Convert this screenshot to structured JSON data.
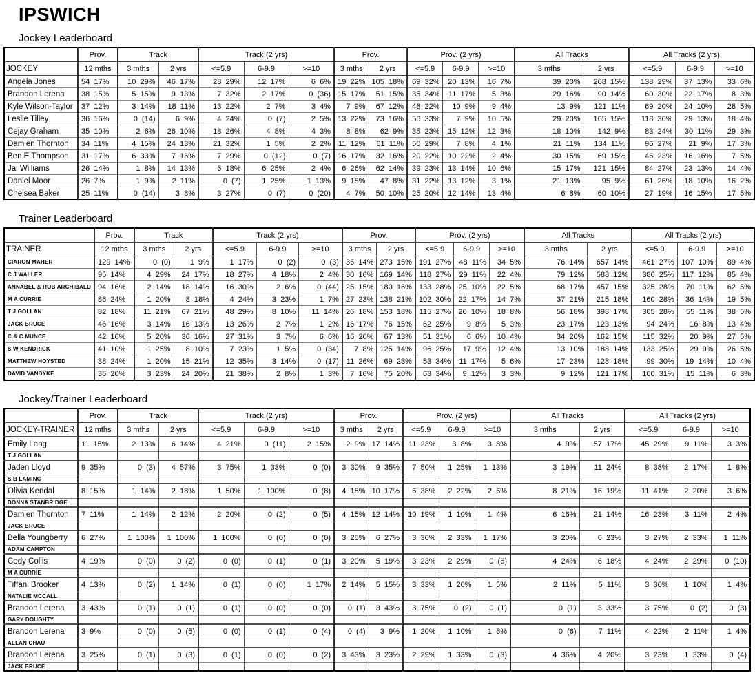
{
  "page_title": "IPSWICH",
  "columns": {
    "header_groups": [
      {
        "label": "Prov.",
        "span": 1
      },
      {
        "label": "Track",
        "span": 2
      },
      {
        "label": "Track (2 yrs)",
        "span": 3
      },
      {
        "label": "Prov.",
        "span": 2
      },
      {
        "label": "Prov. (2 yrs)",
        "span": 3
      },
      {
        "label": "All Tracks",
        "span": 2
      },
      {
        "label": "All Tracks (2 yrs)",
        "span": 3
      }
    ],
    "sub_headers": [
      "12 mths",
      "3 mths",
      "2 yrs",
      "<=5.9",
      "6-9.9",
      ">=10",
      "3 mths",
      "2 yrs",
      "<=5.9",
      "6-9.9",
      ">=10",
      "3 mths",
      "2 yrs",
      "<=5.9",
      "6-9.9",
      ">=10"
    ]
  },
  "sections": [
    {
      "heading": "Jockey Leaderboard",
      "name_header": "JOCKEY",
      "rows": [
        {
          "name": "Angela Jones",
          "values": [
            "54  17%",
            "10  29%",
            "46  17%",
            "28  29%",
            "12  17%",
            "6  6%",
            "19  22%",
            "105  18%",
            "69  32%",
            "20  13%",
            "16  7%",
            "39  20%",
            "208  15%",
            "138  29%",
            "37  13%",
            "33  6%"
          ]
        },
        {
          "name": "Brandon Lerena",
          "values": [
            "38  15%",
            "5  15%",
            "9  13%",
            "7  32%",
            "2  17%",
            "0  (36)",
            "15  17%",
            "51  15%",
            "35  34%",
            "11  17%",
            "5  3%",
            "29  16%",
            "90  14%",
            "60  30%",
            "22  17%",
            "8  3%"
          ]
        },
        {
          "name": "Kyle Wilson-Taylor",
          "values": [
            "37  12%",
            "3  14%",
            "18  11%",
            "13  22%",
            "2  7%",
            "3  4%",
            "7  9%",
            "67  12%",
            "48  22%",
            "10  9%",
            "9  4%",
            "13  9%",
            "121  11%",
            "69  20%",
            "24  10%",
            "28  5%"
          ]
        },
        {
          "name": "Leslie Tilley",
          "values": [
            "36  16%",
            "0  (14)",
            "6  9%",
            "4  24%",
            "0  (7)",
            "2  5%",
            "13  22%",
            "73  16%",
            "56  33%",
            "7  9%",
            "10  5%",
            "29  20%",
            "165  15%",
            "118  30%",
            "29  13%",
            "18  4%"
          ]
        },
        {
          "name": "Cejay Graham",
          "values": [
            "35  10%",
            "2  6%",
            "26  10%",
            "18  26%",
            "4  8%",
            "4  3%",
            "8  8%",
            "62  9%",
            "35  23%",
            "15  12%",
            "12  3%",
            "18  10%",
            "142  9%",
            "83  24%",
            "30  11%",
            "29  3%"
          ]
        },
        {
          "name": "Damien Thornton",
          "values": [
            "34  11%",
            "4  15%",
            "24  13%",
            "21  32%",
            "1  5%",
            "2  2%",
            "11  12%",
            "61  11%",
            "50  29%",
            "7  8%",
            "4  1%",
            "21  11%",
            "134  11%",
            "96  27%",
            "21  9%",
            "17  3%"
          ]
        },
        {
          "name": "Ben E Thompson",
          "values": [
            "31  17%",
            "6  33%",
            "7  16%",
            "7  29%",
            "0  (12)",
            "0  (7)",
            "16  17%",
            "32  16%",
            "20  22%",
            "10  22%",
            "2  4%",
            "30  15%",
            "69  15%",
            "46  23%",
            "16  16%",
            "7  5%"
          ]
        },
        {
          "name": "Jai Williams",
          "values": [
            "26  14%",
            "1  8%",
            "14  13%",
            "6  18%",
            "6  25%",
            "2  4%",
            "6  26%",
            "62  14%",
            "39  23%",
            "13  14%",
            "10  6%",
            "15  17%",
            "121  15%",
            "84  27%",
            "23  13%",
            "14  4%"
          ]
        },
        {
          "name": "Daniel Moor",
          "values": [
            "26  7%",
            "1  9%",
            "2  11%",
            "0  (7)",
            "1  25%",
            "1  13%",
            "9  15%",
            "47  8%",
            "31  22%",
            "13  12%",
            "3  1%",
            "21  13%",
            "95  9%",
            "61  26%",
            "18  10%",
            "16  2%"
          ]
        },
        {
          "name": "Chelsea Baker",
          "values": [
            "25  11%",
            "0  (14)",
            "3  8%",
            "3  27%",
            "0  (7)",
            "0  (20)",
            "4  7%",
            "50  10%",
            "25  20%",
            "12  14%",
            "13  4%",
            "6  8%",
            "60  10%",
            "27  19%",
            "16  15%",
            "17  5%"
          ]
        }
      ]
    },
    {
      "heading": "Trainer Leaderboard",
      "name_header": "TRAINER",
      "rows": [
        {
          "name": "CIARON MAHER",
          "values": [
            "129  14%",
            "0  (0)",
            "1  9%",
            "1  17%",
            "0  (2)",
            "0  (3)",
            "36  14%",
            "273  15%",
            "191  27%",
            "48  11%",
            "34  5%",
            "76  14%",
            "657  14%",
            "461  27%",
            "107  10%",
            "89  4%"
          ]
        },
        {
          "name": "C J WALLER",
          "values": [
            "95  14%",
            "4  29%",
            "24  17%",
            "18  27%",
            "4  18%",
            "2  4%",
            "30  16%",
            "169  14%",
            "118  27%",
            "29  11%",
            "22  4%",
            "79  12%",
            "588  12%",
            "386  25%",
            "117  12%",
            "85  4%"
          ]
        },
        {
          "name": "ANNABEL & ROB ARCHIBALD",
          "values": [
            "94  16%",
            "2  14%",
            "18  14%",
            "16  30%",
            "2  6%",
            "0  (44)",
            "25  15%",
            "180  16%",
            "133  28%",
            "25  10%",
            "22  5%",
            "68  17%",
            "457  15%",
            "325  28%",
            "70  11%",
            "62  5%"
          ]
        },
        {
          "name": "M A CURRIE",
          "values": [
            "86  24%",
            "1  20%",
            "8  18%",
            "4  24%",
            "3  23%",
            "1  7%",
            "27  23%",
            "138  21%",
            "102  30%",
            "22  17%",
            "14  7%",
            "37  21%",
            "215  18%",
            "160  28%",
            "36  14%",
            "19  5%"
          ]
        },
        {
          "name": "T J GOLLAN",
          "values": [
            "82  18%",
            "11  21%",
            "67  21%",
            "48  29%",
            "8  10%",
            "11  14%",
            "26  18%",
            "153  18%",
            "115  27%",
            "20  10%",
            "18  8%",
            "56  18%",
            "398  17%",
            "305  28%",
            "55  11%",
            "38  5%"
          ]
        },
        {
          "name": "JACK BRUCE",
          "values": [
            "46  16%",
            "3  14%",
            "16  13%",
            "13  26%",
            "2  7%",
            "1  2%",
            "16  17%",
            "76  15%",
            "62  25%",
            "9  8%",
            "5  3%",
            "23  17%",
            "123  13%",
            "94  24%",
            "16  8%",
            "13  4%"
          ]
        },
        {
          "name": "C & C MUNCE",
          "values": [
            "42  16%",
            "5  20%",
            "36  16%",
            "27  31%",
            "3  7%",
            "6  6%",
            "16  20%",
            "67  13%",
            "51  31%",
            "6  6%",
            "10  4%",
            "34  20%",
            "162  15%",
            "115  32%",
            "20  9%",
            "27  5%"
          ]
        },
        {
          "name": "S W KENDRICK",
          "values": [
            "41  10%",
            "1  25%",
            "8  10%",
            "7  23%",
            "1  5%",
            "0  (34)",
            "7  8%",
            "125  14%",
            "96  25%",
            "17  9%",
            "12  4%",
            "13  10%",
            "188  14%",
            "133  25%",
            "29  9%",
            "26  5%"
          ]
        },
        {
          "name": "MATTHEW HOYSTED",
          "values": [
            "38  24%",
            "1  20%",
            "15  21%",
            "12  35%",
            "3  14%",
            "0  (17)",
            "11  26%",
            "69  23%",
            "53  34%",
            "11  17%",
            "5  6%",
            "17  23%",
            "128  18%",
            "99  30%",
            "19  14%",
            "10  4%"
          ]
        },
        {
          "name": "DAVID VANDYKE",
          "values": [
            "36  20%",
            "3  23%",
            "24  20%",
            "21  38%",
            "2  8%",
            "1  3%",
            "7  16%",
            "75  20%",
            "63  34%",
            "9  12%",
            "3  3%",
            "9  12%",
            "121  17%",
            "100  31%",
            "15  11%",
            "6  3%"
          ]
        }
      ]
    },
    {
      "heading": "Jockey/Trainer Leaderboard",
      "name_header": "JOCKEY-TRAINER",
      "rows": [
        {
          "jockey": "Emily Lang",
          "trainer": "T J GOLLAN",
          "values": [
            "11  15%",
            "2  13%",
            "6  14%",
            "4  21%",
            "0  (11)",
            "2  15%",
            "2  9%",
            "17  14%",
            "11  23%",
            "3  8%",
            "3  8%",
            "4  9%",
            "57  17%",
            "45  29%",
            "9  11%",
            "3  3%"
          ]
        },
        {
          "jockey": "Jaden Lloyd",
          "trainer": "S B LAMING",
          "values": [
            "9  35%",
            "0  (3)",
            "4  57%",
            "3  75%",
            "1  33%",
            "0  (0)",
            "3  30%",
            "9  35%",
            "7  50%",
            "1  25%",
            "1  13%",
            "3  19%",
            "11  24%",
            "8  38%",
            "2  17%",
            "1  8%"
          ]
        },
        {
          "jockey": "Olivia Kendal",
          "trainer": "DONNA STANBRIDGE",
          "values": [
            "8  15%",
            "1  14%",
            "2  18%",
            "1  50%",
            "1  100%",
            "0  (8)",
            "4  15%",
            "10  17%",
            "6  38%",
            "2  22%",
            "2  6%",
            "8  21%",
            "16  19%",
            "11  41%",
            "2  20%",
            "3  6%"
          ]
        },
        {
          "jockey": "Damien Thornton",
          "trainer": "JACK BRUCE",
          "values": [
            "7  11%",
            "1  14%",
            "2  12%",
            "2  20%",
            "0  (2)",
            "0  (5)",
            "4  15%",
            "12  14%",
            "10  19%",
            "1  10%",
            "1  4%",
            "6  16%",
            "21  14%",
            "16  23%",
            "3  11%",
            "2  4%"
          ]
        },
        {
          "jockey": "Bella Youngberry",
          "trainer": "ADAM CAMPTON",
          "values": [
            "6  27%",
            "1  100%",
            "1  100%",
            "1  100%",
            "0  (0)",
            "0  (0)",
            "3  25%",
            "6  27%",
            "3  30%",
            "2  33%",
            "1  17%",
            "3  20%",
            "6  23%",
            "3  27%",
            "2  33%",
            "1  11%"
          ]
        },
        {
          "jockey": "Cody Collis",
          "trainer": "M A CURRIE",
          "values": [
            "4  19%",
            "0  (0)",
            "0  (2)",
            "0  (0)",
            "0  (1)",
            "0  (1)",
            "3  20%",
            "5  19%",
            "3  23%",
            "2  29%",
            "0  (6)",
            "4  24%",
            "6  18%",
            "4  24%",
            "2  29%",
            "0  (10)"
          ]
        },
        {
          "jockey": "Tiffani Brooker",
          "trainer": "NATALIE MCCALL",
          "values": [
            "4  13%",
            "0  (2)",
            "1  14%",
            "0  (1)",
            "0  (0)",
            "1  17%",
            "2  14%",
            "5  15%",
            "3  33%",
            "1  20%",
            "1  5%",
            "2  11%",
            "5  11%",
            "3  30%",
            "1  10%",
            "1  4%"
          ]
        },
        {
          "jockey": "Brandon Lerena",
          "trainer": "GARY DOUGHTY",
          "values": [
            "3  43%",
            "0  (1)",
            "0  (1)",
            "0  (1)",
            "0  (0)",
            "0  (0)",
            "0  (1)",
            "3  43%",
            "3  75%",
            "0  (2)",
            "0  (1)",
            "0  (1)",
            "3  33%",
            "3  75%",
            "0  (2)",
            "0  (3)"
          ]
        },
        {
          "jockey": "Brandon Lerena",
          "trainer": "ALLAN CHAU",
          "values": [
            "3  9%",
            "0  (0)",
            "0  (5)",
            "0  (0)",
            "0  (1)",
            "0  (4)",
            "0  (4)",
            "3  9%",
            "1  20%",
            "1  10%",
            "1  6%",
            "0  (6)",
            "7  11%",
            "4  22%",
            "2  11%",
            "1  4%"
          ]
        },
        {
          "jockey": "Brandon Lerena",
          "trainer": "JACK BRUCE",
          "values": [
            "3  25%",
            "0  (1)",
            "0  (3)",
            "0  (1)",
            "0  (0)",
            "0  (2)",
            "3  43%",
            "3  23%",
            "2  29%",
            "1  33%",
            "0  (3)",
            "4  36%",
            "4  20%",
            "3  23%",
            "1  33%",
            "0  (4)"
          ]
        }
      ]
    }
  ]
}
